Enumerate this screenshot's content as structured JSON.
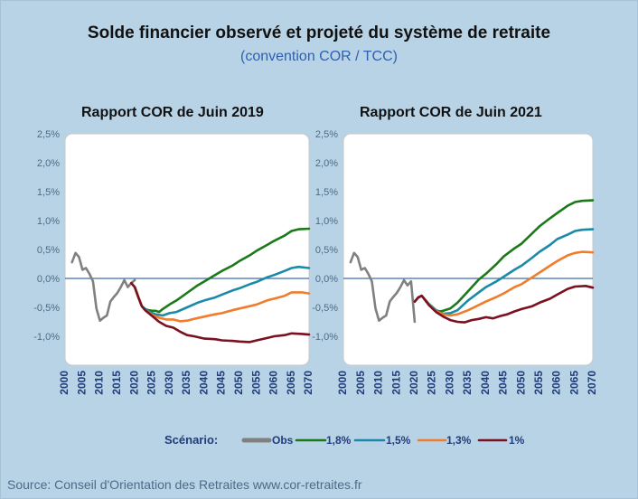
{
  "title": "Solde financier observé et projeté du système de retraite",
  "subtitle": "(convention COR / TCC)",
  "source": "Source: Conseil d'Orientation des Retraites www.cor-retraites.fr",
  "legend": {
    "label": "Scénario:",
    "items": [
      {
        "name": "Obs",
        "color": "#808080"
      },
      {
        "name": "1,8%",
        "color": "#1a7a1a"
      },
      {
        "name": "1,5%",
        "color": "#1b8aa8"
      },
      {
        "name": "1,3%",
        "color": "#f07c2c"
      },
      {
        "name": "1%",
        "color": "#7a1020"
      }
    ]
  },
  "chart_data": [
    {
      "type": "line",
      "title": "Rapport COR de Juin 2019",
      "xlim": [
        2000,
        2070
      ],
      "ylim": [
        -1.5,
        2.5
      ],
      "x_ticks": [
        "2000",
        "2005",
        "2010",
        "2015",
        "2020",
        "2025",
        "2030",
        "2035",
        "2040",
        "2045",
        "2050",
        "2055",
        "2060",
        "2065",
        "2070"
      ],
      "y_ticks": [
        "2,5%",
        "2,0%",
        "1,5%",
        "1,0%",
        "0,5%",
        "0,0%",
        "-0,5%",
        "-1,0%"
      ],
      "series": [
        {
          "name": "Obs",
          "color": "#808080",
          "points": [
            [
              2002,
              0.28
            ],
            [
              2003,
              0.44
            ],
            [
              2004,
              0.37
            ],
            [
              2005,
              0.15
            ],
            [
              2006,
              0.18
            ],
            [
              2007,
              0.08
            ],
            [
              2008,
              -0.05
            ],
            [
              2009,
              -0.52
            ],
            [
              2010,
              -0.73
            ],
            [
              2011,
              -0.68
            ],
            [
              2012,
              -0.64
            ],
            [
              2013,
              -0.4
            ],
            [
              2014,
              -0.32
            ],
            [
              2015,
              -0.25
            ],
            [
              2016,
              -0.15
            ],
            [
              2017,
              -0.03
            ],
            [
              2018,
              -0.15
            ],
            [
              2019,
              -0.08
            ],
            [
              2020,
              -0.03
            ]
          ]
        },
        {
          "name": "1,8%",
          "color": "#1a7a1a",
          "points": [
            [
              2020,
              -0.15
            ],
            [
              2021,
              -0.32
            ],
            [
              2022,
              -0.48
            ],
            [
              2023,
              -0.53
            ],
            [
              2024,
              -0.55
            ],
            [
              2025,
              -0.56
            ],
            [
              2026,
              -0.56
            ],
            [
              2027,
              -0.58
            ],
            [
              2028,
              -0.53
            ],
            [
              2030,
              -0.45
            ],
            [
              2032,
              -0.38
            ],
            [
              2035,
              -0.25
            ],
            [
              2038,
              -0.12
            ],
            [
              2040,
              -0.05
            ],
            [
              2043,
              0.06
            ],
            [
              2045,
              0.13
            ],
            [
              2048,
              0.22
            ],
            [
              2050,
              0.3
            ],
            [
              2053,
              0.4
            ],
            [
              2055,
              0.48
            ],
            [
              2058,
              0.58
            ],
            [
              2060,
              0.65
            ],
            [
              2063,
              0.74
            ],
            [
              2065,
              0.82
            ],
            [
              2067,
              0.85
            ],
            [
              2070,
              0.86
            ]
          ]
        },
        {
          "name": "1,5%",
          "color": "#1b8aa8",
          "points": [
            [
              2020,
              -0.15
            ],
            [
              2021,
              -0.32
            ],
            [
              2022,
              -0.48
            ],
            [
              2023,
              -0.53
            ],
            [
              2024,
              -0.57
            ],
            [
              2025,
              -0.6
            ],
            [
              2026,
              -0.62
            ],
            [
              2028,
              -0.64
            ],
            [
              2030,
              -0.6
            ],
            [
              2032,
              -0.58
            ],
            [
              2035,
              -0.5
            ],
            [
              2038,
              -0.42
            ],
            [
              2040,
              -0.38
            ],
            [
              2043,
              -0.33
            ],
            [
              2045,
              -0.28
            ],
            [
              2048,
              -0.21
            ],
            [
              2050,
              -0.17
            ],
            [
              2053,
              -0.1
            ],
            [
              2055,
              -0.06
            ],
            [
              2058,
              0.02
            ],
            [
              2060,
              0.06
            ],
            [
              2063,
              0.13
            ],
            [
              2065,
              0.18
            ],
            [
              2067,
              0.2
            ],
            [
              2070,
              0.18
            ]
          ]
        },
        {
          "name": "1,3%",
          "color": "#f07c2c",
          "points": [
            [
              2020,
              -0.15
            ],
            [
              2021,
              -0.32
            ],
            [
              2022,
              -0.48
            ],
            [
              2023,
              -0.55
            ],
            [
              2025,
              -0.63
            ],
            [
              2027,
              -0.68
            ],
            [
              2029,
              -0.71
            ],
            [
              2031,
              -0.71
            ],
            [
              2033,
              -0.74
            ],
            [
              2035,
              -0.73
            ],
            [
              2037,
              -0.7
            ],
            [
              2040,
              -0.66
            ],
            [
              2043,
              -0.62
            ],
            [
              2045,
              -0.6
            ],
            [
              2048,
              -0.55
            ],
            [
              2050,
              -0.52
            ],
            [
              2053,
              -0.48
            ],
            [
              2055,
              -0.45
            ],
            [
              2058,
              -0.38
            ],
            [
              2060,
              -0.35
            ],
            [
              2063,
              -0.3
            ],
            [
              2065,
              -0.24
            ],
            [
              2068,
              -0.24
            ],
            [
              2070,
              -0.26
            ]
          ]
        },
        {
          "name": "1%",
          "color": "#7a1020",
          "points": [
            [
              2019,
              -0.08
            ],
            [
              2020,
              -0.15
            ],
            [
              2021,
              -0.32
            ],
            [
              2022,
              -0.48
            ],
            [
              2023,
              -0.55
            ],
            [
              2025,
              -0.65
            ],
            [
              2027,
              -0.75
            ],
            [
              2029,
              -0.82
            ],
            [
              2031,
              -0.85
            ],
            [
              2033,
              -0.92
            ],
            [
              2035,
              -0.98
            ],
            [
              2037,
              -1.0
            ],
            [
              2040,
              -1.04
            ],
            [
              2043,
              -1.05
            ],
            [
              2045,
              -1.07
            ],
            [
              2048,
              -1.08
            ],
            [
              2050,
              -1.09
            ],
            [
              2053,
              -1.1
            ],
            [
              2055,
              -1.07
            ],
            [
              2058,
              -1.03
            ],
            [
              2060,
              -1.0
            ],
            [
              2063,
              -0.98
            ],
            [
              2065,
              -0.95
            ],
            [
              2068,
              -0.96
            ],
            [
              2070,
              -0.97
            ]
          ]
        }
      ]
    },
    {
      "type": "line",
      "title": "Rapport COR de Juin 2021",
      "xlim": [
        2000,
        2070
      ],
      "ylim": [
        -1.5,
        2.5
      ],
      "x_ticks": [
        "2000",
        "2005",
        "2010",
        "2015",
        "2020",
        "2025",
        "2030",
        "2035",
        "2040",
        "2045",
        "2050",
        "2055",
        "2060",
        "2065",
        "2070"
      ],
      "y_ticks": [
        "2,5%",
        "2,0%",
        "1,5%",
        "1,0%",
        "0,5%",
        "0,0%",
        "-0,5%",
        "-1,0%"
      ],
      "series": [
        {
          "name": "Obs",
          "color": "#808080",
          "points": [
            [
              2002,
              0.28
            ],
            [
              2003,
              0.44
            ],
            [
              2004,
              0.37
            ],
            [
              2005,
              0.15
            ],
            [
              2006,
              0.18
            ],
            [
              2007,
              0.08
            ],
            [
              2008,
              -0.05
            ],
            [
              2009,
              -0.52
            ],
            [
              2010,
              -0.73
            ],
            [
              2011,
              -0.68
            ],
            [
              2012,
              -0.64
            ],
            [
              2013,
              -0.4
            ],
            [
              2014,
              -0.32
            ],
            [
              2015,
              -0.25
            ],
            [
              2016,
              -0.15
            ],
            [
              2017,
              -0.03
            ],
            [
              2018,
              -0.12
            ],
            [
              2019,
              -0.05
            ],
            [
              2020,
              -0.75
            ]
          ]
        },
        {
          "name": "1,8%",
          "color": "#1a7a1a",
          "points": [
            [
              2020,
              -0.4
            ],
            [
              2021,
              -0.33
            ],
            [
              2022,
              -0.3
            ],
            [
              2024,
              -0.44
            ],
            [
              2026,
              -0.55
            ],
            [
              2027,
              -0.57
            ],
            [
              2028,
              -0.56
            ],
            [
              2030,
              -0.52
            ],
            [
              2032,
              -0.42
            ],
            [
              2035,
              -0.22
            ],
            [
              2038,
              -0.02
            ],
            [
              2040,
              0.08
            ],
            [
              2043,
              0.25
            ],
            [
              2045,
              0.38
            ],
            [
              2048,
              0.52
            ],
            [
              2050,
              0.6
            ],
            [
              2053,
              0.78
            ],
            [
              2055,
              0.9
            ],
            [
              2058,
              1.04
            ],
            [
              2060,
              1.13
            ],
            [
              2063,
              1.26
            ],
            [
              2065,
              1.32
            ],
            [
              2067,
              1.34
            ],
            [
              2070,
              1.35
            ]
          ]
        },
        {
          "name": "1,5%",
          "color": "#1b8aa8",
          "points": [
            [
              2020,
              -0.4
            ],
            [
              2021,
              -0.33
            ],
            [
              2022,
              -0.3
            ],
            [
              2024,
              -0.44
            ],
            [
              2026,
              -0.55
            ],
            [
              2027,
              -0.59
            ],
            [
              2028,
              -0.61
            ],
            [
              2030,
              -0.6
            ],
            [
              2032,
              -0.55
            ],
            [
              2035,
              -0.38
            ],
            [
              2038,
              -0.24
            ],
            [
              2040,
              -0.15
            ],
            [
              2043,
              -0.05
            ],
            [
              2045,
              0.03
            ],
            [
              2048,
              0.15
            ],
            [
              2050,
              0.22
            ],
            [
              2053,
              0.36
            ],
            [
              2055,
              0.46
            ],
            [
              2058,
              0.58
            ],
            [
              2060,
              0.68
            ],
            [
              2063,
              0.76
            ],
            [
              2065,
              0.82
            ],
            [
              2067,
              0.84
            ],
            [
              2070,
              0.85
            ]
          ]
        },
        {
          "name": "1,3%",
          "color": "#f07c2c",
          "points": [
            [
              2020,
              -0.4
            ],
            [
              2021,
              -0.33
            ],
            [
              2022,
              -0.3
            ],
            [
              2024,
              -0.45
            ],
            [
              2026,
              -0.57
            ],
            [
              2028,
              -0.62
            ],
            [
              2030,
              -0.64
            ],
            [
              2032,
              -0.62
            ],
            [
              2035,
              -0.55
            ],
            [
              2038,
              -0.46
            ],
            [
              2040,
              -0.4
            ],
            [
              2043,
              -0.32
            ],
            [
              2045,
              -0.26
            ],
            [
              2048,
              -0.15
            ],
            [
              2050,
              -0.1
            ],
            [
              2053,
              0.02
            ],
            [
              2055,
              0.1
            ],
            [
              2058,
              0.22
            ],
            [
              2060,
              0.3
            ],
            [
              2063,
              0.4
            ],
            [
              2065,
              0.44
            ],
            [
              2067,
              0.46
            ],
            [
              2070,
              0.45
            ]
          ]
        },
        {
          "name": "1%",
          "color": "#7a1020",
          "points": [
            [
              2020,
              -0.4
            ],
            [
              2021,
              -0.33
            ],
            [
              2022,
              -0.3
            ],
            [
              2024,
              -0.46
            ],
            [
              2026,
              -0.58
            ],
            [
              2028,
              -0.66
            ],
            [
              2030,
              -0.72
            ],
            [
              2032,
              -0.75
            ],
            [
              2034,
              -0.76
            ],
            [
              2036,
              -0.72
            ],
            [
              2038,
              -0.7
            ],
            [
              2040,
              -0.67
            ],
            [
              2042,
              -0.69
            ],
            [
              2044,
              -0.65
            ],
            [
              2046,
              -0.62
            ],
            [
              2048,
              -0.57
            ],
            [
              2050,
              -0.53
            ],
            [
              2053,
              -0.48
            ],
            [
              2055,
              -0.42
            ],
            [
              2058,
              -0.35
            ],
            [
              2060,
              -0.28
            ],
            [
              2063,
              -0.18
            ],
            [
              2065,
              -0.14
            ],
            [
              2068,
              -0.13
            ],
            [
              2070,
              -0.16
            ]
          ]
        }
      ]
    }
  ]
}
